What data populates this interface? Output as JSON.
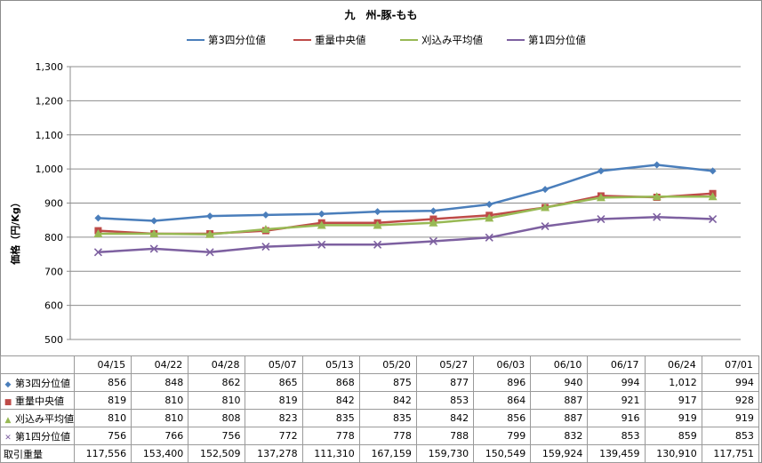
{
  "chart_data": {
    "type": "line",
    "title": "九　州-豚-もも",
    "ylabel": "価格（円/Kg）",
    "ylim": [
      500,
      1300
    ],
    "yticks": [
      "500",
      "600",
      "700",
      "800",
      "900",
      "1,000",
      "1,100",
      "1,200",
      "1,300"
    ],
    "categories": [
      "04/15",
      "04/22",
      "04/28",
      "05/07",
      "05/13",
      "05/20",
      "05/27",
      "06/03",
      "06/10",
      "06/17",
      "06/24",
      "07/01"
    ],
    "series": [
      {
        "name": "第3四分位値",
        "color": "#4a7ebb",
        "marker": "diamond",
        "values": [
          856,
          848,
          862,
          865,
          868,
          875,
          877,
          896,
          940,
          994,
          1012,
          994
        ],
        "labels": [
          "856",
          "848",
          "862",
          "865",
          "868",
          "875",
          "877",
          "896",
          "940",
          "994",
          "1,012",
          "994"
        ]
      },
      {
        "name": "重量中央値",
        "color": "#be4b48",
        "marker": "square",
        "values": [
          819,
          810,
          810,
          819,
          842,
          842,
          853,
          864,
          887,
          921,
          917,
          928
        ],
        "labels": [
          "819",
          "810",
          "810",
          "819",
          "842",
          "842",
          "853",
          "864",
          "887",
          "921",
          "917",
          "928"
        ]
      },
      {
        "name": "刈込み平均値",
        "color": "#98b954",
        "marker": "triangle",
        "values": [
          810,
          810,
          808,
          823,
          835,
          835,
          842,
          856,
          887,
          916,
          919,
          919
        ],
        "labels": [
          "810",
          "810",
          "808",
          "823",
          "835",
          "835",
          "842",
          "856",
          "887",
          "916",
          "919",
          "919"
        ]
      },
      {
        "name": "第1四分位値",
        "color": "#7d60a0",
        "marker": "x",
        "values": [
          756,
          766,
          756,
          772,
          778,
          778,
          788,
          799,
          832,
          853,
          859,
          853
        ],
        "labels": [
          "756",
          "766",
          "756",
          "772",
          "778",
          "778",
          "788",
          "799",
          "832",
          "853",
          "859",
          "853"
        ]
      }
    ],
    "table_extra": {
      "name": "取引重量",
      "values": [
        "117,556",
        "153,400",
        "152,509",
        "137,278",
        "111,310",
        "167,159",
        "159,730",
        "150,549",
        "159,924",
        "139,459",
        "130,910",
        "117,751"
      ]
    },
    "grid": true,
    "legend": "top"
  }
}
